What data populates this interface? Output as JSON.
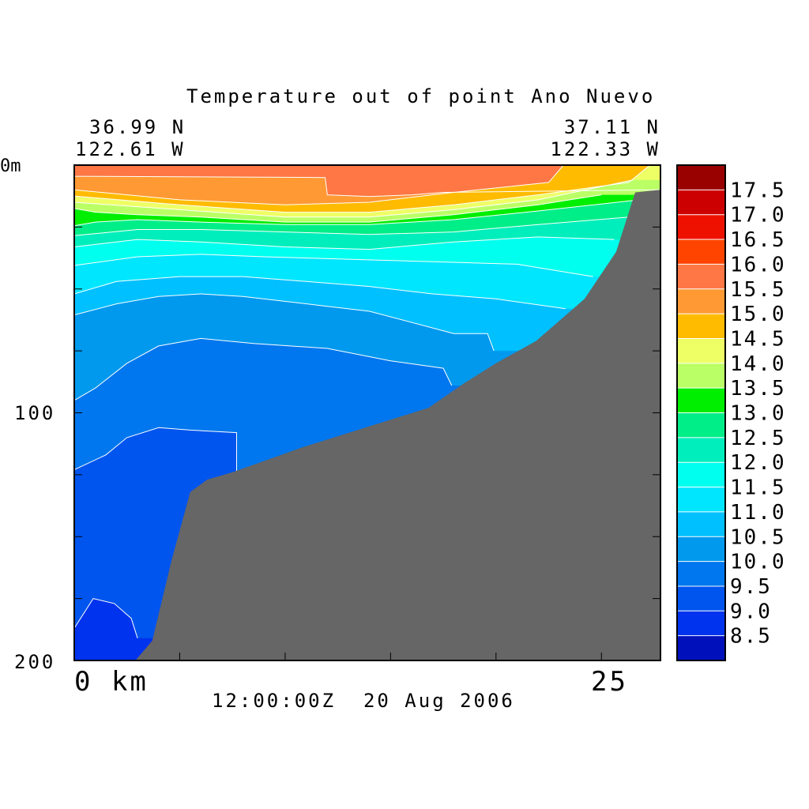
{
  "chart_data": {
    "type": "heatmap",
    "title": "Temperature out of point Ano Nuevo",
    "start": {
      "lat": "36.99 N",
      "lon": "122.61 W"
    },
    "end": {
      "lat": "37.11 N",
      "lon": "122.33 W"
    },
    "y_axis": {
      "unit_label": "0m",
      "ticks": [
        "100",
        "200"
      ],
      "range": [
        0,
        200
      ],
      "inverted": true
    },
    "x_axis": {
      "ticks": [
        "0 km",
        "25"
      ],
      "range_km": [
        0,
        27.8
      ]
    },
    "timestamp": "12:00:00Z  20 Aug 2006",
    "bathymetry_color": "#666666",
    "colorbar": {
      "labels": [
        "17.5",
        "17.0",
        "16.5",
        "16.0",
        "15.5",
        "15.0",
        "14.5",
        "14.0",
        "13.5",
        "13.0",
        "12.5",
        "12.0",
        "11.5",
        "11.0",
        "10.5",
        "10.0",
        "9.5",
        "9.0",
        "8.5"
      ],
      "colors": [
        "#990000",
        "#cc0000",
        "#ee1100",
        "#ff4400",
        "#ff7744",
        "#ff9933",
        "#ffbb00",
        "#eeff66",
        "#bbff66",
        "#00ee00",
        "#00ee88",
        "#00eebb",
        "#00ffee",
        "#00e6ff",
        "#00c0ff",
        "#0099ee",
        "#0077ee",
        "#0055ee",
        "#0033ee",
        "#0011bb"
      ]
    },
    "bottom_depth_profile": {
      "x_km": [
        2.9,
        3.7,
        4.6,
        5.5,
        6.3,
        7.5,
        10.8,
        13.8,
        16.8,
        18.5,
        20.0,
        21.9,
        24.2,
        25.7,
        26.6,
        27.8
      ],
      "depth_m": [
        200,
        192,
        160,
        132,
        127,
        124,
        114,
        106,
        98,
        88,
        80,
        71,
        54,
        35,
        11,
        10
      ]
    },
    "isotherms": [
      {
        "value": 15.5,
        "x_km": [
          0,
          11.9,
          12.0,
          14,
          16,
          17.5,
          27.8
        ],
        "depth_m": [
          4.5,
          5,
          12,
          12.7,
          12,
          11,
          10
        ]
      },
      {
        "value": 15.0,
        "x_km": [
          0,
          5,
          10,
          14,
          18,
          22.5,
          23.2
        ],
        "depth_m": [
          10,
          14,
          16,
          15,
          11,
          7,
          0
        ]
      },
      {
        "value": 14.5,
        "x_km": [
          0,
          5,
          10,
          14,
          18,
          22,
          26.3,
          27.3
        ],
        "depth_m": [
          12.5,
          16,
          19,
          19,
          16,
          12,
          7,
          0
        ]
      },
      {
        "value": 14.0,
        "x_km": [
          0,
          5,
          10,
          14,
          18,
          22,
          26.5
        ],
        "depth_m": [
          15,
          18,
          21,
          21,
          18,
          14,
          6
        ]
      },
      {
        "value": 13.5,
        "x_km": [
          0,
          1,
          3,
          6,
          10,
          14,
          18,
          22,
          25
        ],
        "depth_m": [
          17.5,
          19,
          20,
          21,
          23,
          23,
          20,
          16,
          12
        ]
      },
      {
        "value": 13.0,
        "x_km": [
          0,
          1,
          3,
          6,
          10,
          14,
          18,
          22,
          26.8
        ],
        "depth_m": [
          24.5,
          23,
          22,
          23,
          24,
          24,
          22,
          18.5,
          14
        ]
      },
      {
        "value": 12.5,
        "x_km": [
          0,
          3,
          6,
          10,
          14,
          18,
          22,
          26.3
        ],
        "depth_m": [
          28.5,
          26,
          26,
          27,
          28,
          27,
          24,
          21
        ]
      },
      {
        "value": 12.0,
        "x_km": [
          0,
          3,
          6,
          10,
          14,
          18,
          22,
          25.6
        ],
        "depth_m": [
          33,
          30,
          31,
          33,
          34,
          31,
          29,
          30
        ]
      },
      {
        "value": 11.5,
        "x_km": [
          0,
          3,
          6,
          9,
          13,
          17,
          21,
          24.6
        ],
        "depth_m": [
          40.5,
          37,
          36,
          37,
          38,
          39,
          40,
          45
        ]
      },
      {
        "value": 11.0,
        "x_km": [
          0,
          2,
          5,
          8,
          11,
          14,
          17,
          20,
          23.3
        ],
        "depth_m": [
          52,
          47,
          45,
          45,
          47,
          49,
          52,
          54,
          58
        ]
      },
      {
        "value": 10.5,
        "x_km": [
          0,
          2,
          4,
          6,
          8,
          12,
          14,
          18,
          19.6,
          19.9
        ],
        "depth_m": [
          60.5,
          56,
          53,
          52,
          53,
          57,
          59,
          68,
          68,
          75
        ]
      },
      {
        "value": 10.0,
        "x_km": [
          0,
          1,
          2.5,
          4,
          6,
          8.5,
          12,
          15,
          17.5,
          17.9
        ],
        "depth_m": [
          95,
          90,
          80,
          73,
          70,
          72,
          74,
          79,
          82,
          89
        ]
      },
      {
        "value": 9.5,
        "x_km": [
          0,
          1.5,
          2.5,
          4,
          5.5,
          7.7,
          7.7
        ],
        "depth_m": [
          123,
          117,
          110,
          106,
          107,
          108,
          126
        ]
      },
      {
        "value": 9.0,
        "x_km": [
          0,
          0.9,
          1.9,
          2.7,
          3.0
        ],
        "depth_m": [
          187,
          175,
          177,
          183,
          191
        ]
      }
    ]
  }
}
